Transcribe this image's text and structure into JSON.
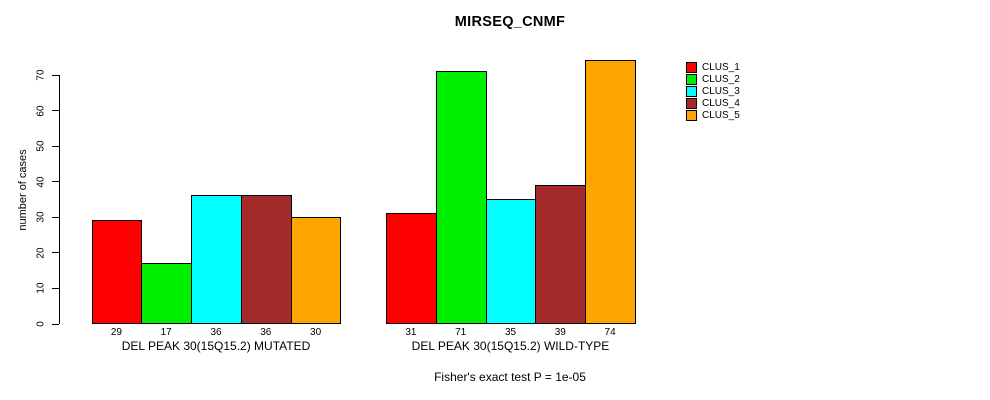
{
  "chart_data": {
    "type": "bar",
    "title": "MIRSEQ_CNMF",
    "ylabel": "number of cases",
    "xlabel": "",
    "annotation": "Fisher's exact test P = 1e-05",
    "yticks": [
      0,
      10,
      20,
      30,
      40,
      50,
      60,
      70
    ],
    "ylim": [
      0,
      74
    ],
    "grid": false,
    "legend_position": "right-outside-top",
    "series": [
      "CLUS_1",
      "CLUS_2",
      "CLUS_3",
      "CLUS_4",
      "CLUS_5"
    ],
    "series_colors": [
      "#FF0000",
      "#00EE00",
      "#00FFFF",
      "#A52A2A",
      "#FFA500"
    ],
    "groups": [
      {
        "label": "DEL PEAK 30(15Q15.2) MUTATED",
        "values": [
          29,
          17,
          36,
          36,
          30
        ]
      },
      {
        "label": "DEL PEAK 30(15Q15.2) WILD-TYPE",
        "values": [
          31,
          71,
          35,
          39,
          74
        ]
      }
    ],
    "bar_value_labels_shown": true,
    "axis_color": "#000000",
    "background_color": "#FFFFFF"
  }
}
